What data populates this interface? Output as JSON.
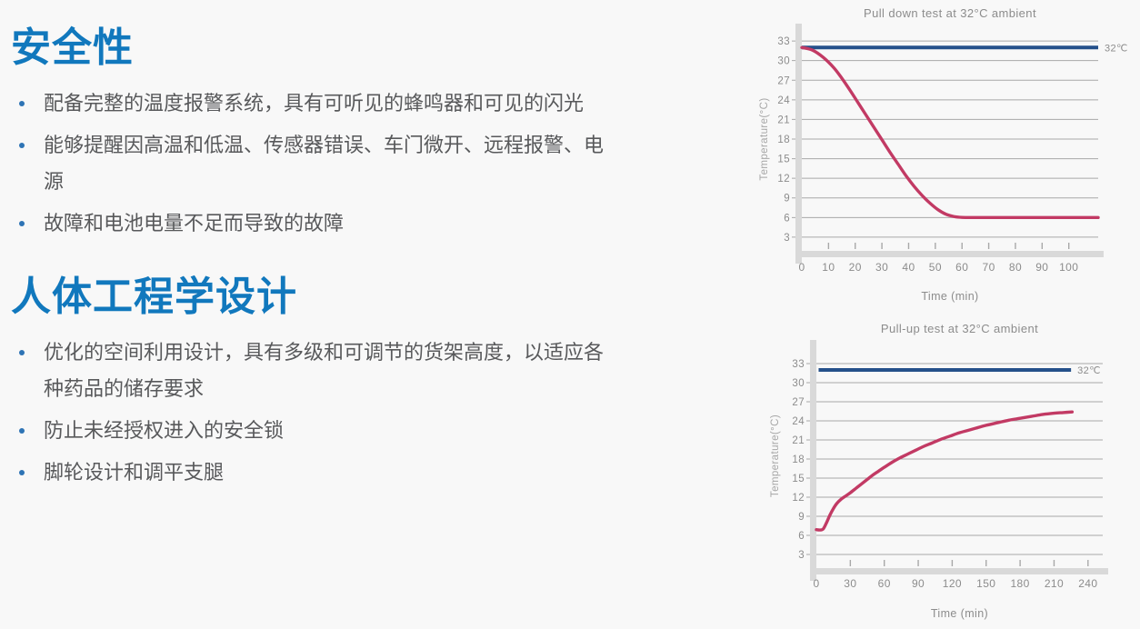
{
  "colors": {
    "background": "#f8f8f8",
    "heading_blue": "#1178bd",
    "body_text": "#58595b",
    "bullet_dot": "#2e74b5",
    "ambient_line_blue": "#24508a",
    "curve_crimson": "#c23a64",
    "gridline_gray": "#a8a8a8",
    "axis_band_gray": "#d9d9d9",
    "chart_text_gray": "#8c8c8c",
    "axis_title_gray": "#a6a6a6"
  },
  "sections": [
    {
      "heading": "安全性",
      "bullets": [
        "配备完整的温度报警系统，具有可听见的蜂鸣器和可见的闪光",
        "能够提醒因高温和低温、传感器错误、车门微开、远程报警、电源",
        "故障和电池电量不足而导致的故障"
      ]
    },
    {
      "heading": "人体工程学设计",
      "bullets": [
        "优化的空间利用设计，具有多级和可调节的货架高度，以适应各种药品的储存要求",
        "防止未经授权进入的安全锁",
        "脚轮设计和调平支腿"
      ]
    }
  ],
  "chart_data": [
    {
      "type": "line",
      "title": "Pull down test at 32°C ambient",
      "xlabel": "Time (min)",
      "ylabel": "Temperature(°C)",
      "xticks": [
        0,
        10,
        20,
        30,
        40,
        50,
        60,
        70,
        80,
        90,
        100
      ],
      "yticks": [
        3,
        6,
        9,
        12,
        15,
        18,
        21,
        24,
        27,
        30,
        33
      ],
      "xlim": [
        0,
        111
      ],
      "ylim": [
        0.9,
        35.1
      ],
      "grid": "horizontal",
      "legend_position": "none",
      "series": [
        {
          "name": "ambient-reference",
          "style": "hline",
          "value": 32,
          "span": [
            0,
            111
          ],
          "label": "32℃",
          "color": "#24508a"
        },
        {
          "name": "cabinet-temperature",
          "style": "curve",
          "color": "#c23a64",
          "points": [
            [
              0,
              32
            ],
            [
              4,
              31.6
            ],
            [
              8,
              30.5
            ],
            [
              12,
              28.9
            ],
            [
              15,
              27.3
            ],
            [
              18,
              25.5
            ],
            [
              21,
              23.6
            ],
            [
              24,
              21.7
            ],
            [
              27,
              19.8
            ],
            [
              30,
              17.9
            ],
            [
              33,
              16.0
            ],
            [
              36,
              14.2
            ],
            [
              39,
              12.4
            ],
            [
              42,
              10.8
            ],
            [
              45,
              9.4
            ],
            [
              48,
              8.2
            ],
            [
              51,
              7.2
            ],
            [
              54,
              6.5
            ],
            [
              57,
              6.15
            ],
            [
              60,
              6.02
            ],
            [
              65,
              6
            ],
            [
              75,
              6
            ],
            [
              85,
              6
            ],
            [
              95,
              6
            ],
            [
              105,
              6
            ],
            [
              111,
              6
            ]
          ]
        }
      ]
    },
    {
      "type": "line",
      "title": "Pull-up test at 32°C ambient",
      "xlabel": "Time (min)",
      "ylabel": "Temperature(°C)",
      "xticks": [
        0,
        30,
        60,
        90,
        120,
        150,
        180,
        210,
        240
      ],
      "yticks": [
        3,
        6,
        9,
        12,
        15,
        18,
        21,
        24,
        27,
        30,
        33
      ],
      "xlim": [
        0,
        253
      ],
      "ylim": [
        0.86,
        36.14
      ],
      "grid": "horizontal",
      "legend_position": "none",
      "series": [
        {
          "name": "ambient-reference",
          "style": "hline",
          "value": 32,
          "span": [
            2,
            225
          ],
          "label": "32℃",
          "color": "#24508a"
        },
        {
          "name": "cabinet-temperature",
          "style": "curve",
          "color": "#c23a64",
          "points": [
            [
              0,
              6.9
            ],
            [
              3,
              6.85
            ],
            [
              6,
              7.0
            ],
            [
              9,
              8.0
            ],
            [
              12,
              9.2
            ],
            [
              15,
              10.2
            ],
            [
              18,
              11.0
            ],
            [
              22,
              11.7
            ],
            [
              26,
              12.2
            ],
            [
              30,
              12.7
            ],
            [
              35,
              13.4
            ],
            [
              40,
              14.1
            ],
            [
              45,
              14.8
            ],
            [
              50,
              15.5
            ],
            [
              55,
              16.1
            ],
            [
              60,
              16.7
            ],
            [
              67,
              17.5
            ],
            [
              74,
              18.2
            ],
            [
              81,
              18.8
            ],
            [
              88,
              19.4
            ],
            [
              95,
              20.0
            ],
            [
              102,
              20.5
            ],
            [
              110,
              21.1
            ],
            [
              118,
              21.6
            ],
            [
              126,
              22.1
            ],
            [
              134,
              22.5
            ],
            [
              142,
              22.9
            ],
            [
              150,
              23.3
            ],
            [
              160,
              23.7
            ],
            [
              170,
              24.1
            ],
            [
              180,
              24.4
            ],
            [
              190,
              24.7
            ],
            [
              200,
              25.0
            ],
            [
              210,
              25.2
            ],
            [
              218,
              25.3
            ],
            [
              226,
              25.4
            ]
          ]
        }
      ]
    }
  ]
}
